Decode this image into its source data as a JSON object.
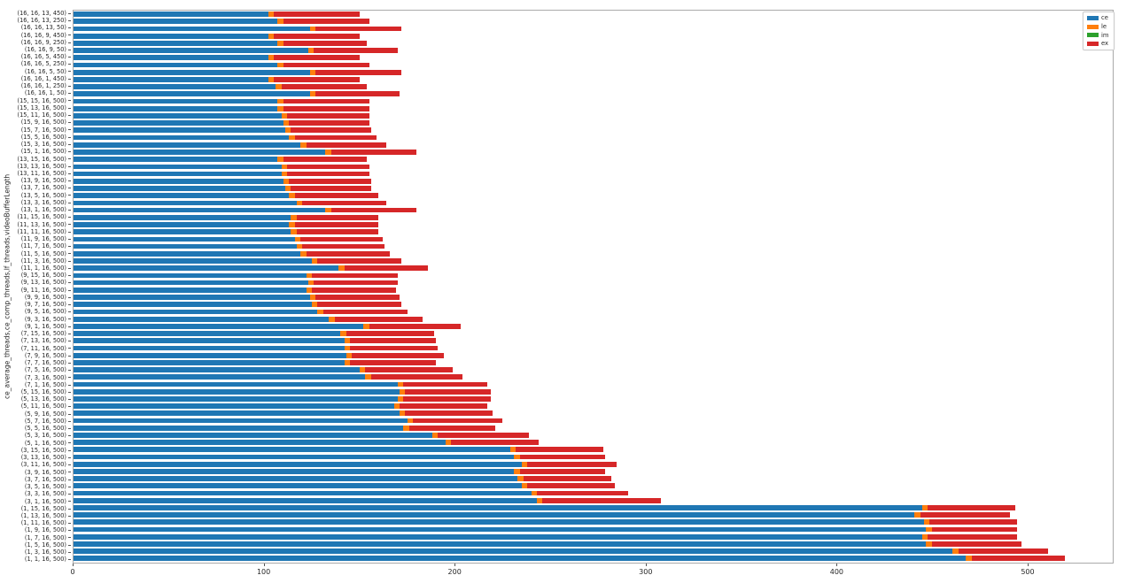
{
  "figure": {
    "background": "#ffffff"
  },
  "legend": {
    "entries": [
      {
        "label": "ce",
        "color": "#1f77b4"
      },
      {
        "label": "le",
        "color": "#ff7f0e"
      },
      {
        "label": "im",
        "color": "#2ca02c"
      },
      {
        "label": "ex",
        "color": "#d62728"
      }
    ]
  },
  "chart_data": {
    "type": "bar",
    "orientation": "horizontal",
    "stacked": true,
    "title": "",
    "xlabel": "",
    "ylabel": "ce_average_threads,ce_comp_threads,lf_threads,videoBufferLength",
    "xlim": [
      0,
      545
    ],
    "xticks": [
      0,
      100,
      200,
      300,
      400,
      500
    ],
    "grid": false,
    "legend_position": "upper right",
    "colors": {
      "ce": "#1f77b4",
      "le": "#ff7f0e",
      "im": "#2ca02c",
      "ex": "#d62728"
    },
    "categories": [
      "(16, 16, 13, 450)",
      "(16, 16, 13, 250)",
      "(16, 16, 13, 50)",
      "(16, 16, 9, 450)",
      "(16, 16, 9, 250)",
      "(16, 16, 9, 50)",
      "(16, 16, 5, 450)",
      "(16, 16, 5, 250)",
      "(16, 16, 5, 50)",
      "(16, 16, 1, 450)",
      "(16, 16, 1, 250)",
      "(16, 16, 1, 50)",
      "(15, 15, 16, 500)",
      "(15, 13, 16, 500)",
      "(15, 11, 16, 500)",
      "(15, 9, 16, 500)",
      "(15, 7, 16, 500)",
      "(15, 5, 16, 500)",
      "(15, 3, 16, 500)",
      "(15, 1, 16, 500)",
      "(13, 15, 16, 500)",
      "(13, 13, 16, 500)",
      "(13, 11, 16, 500)",
      "(13, 9, 16, 500)",
      "(13, 7, 16, 500)",
      "(13, 5, 16, 500)",
      "(13, 3, 16, 500)",
      "(13, 1, 16, 500)",
      "(11, 15, 16, 500)",
      "(11, 13, 16, 500)",
      "(11, 11, 16, 500)",
      "(11, 9, 16, 500)",
      "(11, 7, 16, 500)",
      "(11, 5, 16, 500)",
      "(11, 3, 16, 500)",
      "(11, 1, 16, 500)",
      "(9, 15, 16, 500)",
      "(9, 13, 16, 500)",
      "(9, 11, 16, 500)",
      "(9, 9, 16, 500)",
      "(9, 7, 16, 500)",
      "(9, 5, 16, 500)",
      "(9, 3, 16, 500)",
      "(9, 1, 16, 500)",
      "(7, 15, 16, 500)",
      "(7, 13, 16, 500)",
      "(7, 11, 16, 500)",
      "(7, 9, 16, 500)",
      "(7, 7, 16, 500)",
      "(7, 5, 16, 500)",
      "(7, 3, 16, 500)",
      "(7, 1, 16, 500)",
      "(5, 15, 16, 500)",
      "(5, 13, 16, 500)",
      "(5, 11, 16, 500)",
      "(5, 9, 16, 500)",
      "(5, 7, 16, 500)",
      "(5, 5, 16, 500)",
      "(5, 3, 16, 500)",
      "(5, 1, 16, 500)",
      "(3, 15, 16, 500)",
      "(3, 13, 16, 500)",
      "(3, 11, 16, 500)",
      "(3, 9, 16, 500)",
      "(3, 7, 16, 500)",
      "(3, 5, 16, 500)",
      "(3, 3, 16, 500)",
      "(3, 1, 16, 500)",
      "(1, 15, 16, 500)",
      "(1, 13, 16, 500)",
      "(1, 11, 16, 500)",
      "(1, 9, 16, 500)",
      "(1, 7, 16, 500)",
      "(1, 5, 16, 500)",
      "(1, 3, 16, 500)",
      "(1, 1, 16, 500)"
    ],
    "series": [
      {
        "name": "ce",
        "values": [
          102,
          107,
          124,
          102,
          107,
          123,
          102,
          107,
          124,
          102,
          106,
          124,
          107,
          107,
          109,
          110,
          111,
          113,
          119,
          132,
          107,
          109,
          109,
          110,
          111,
          113,
          117,
          132,
          114,
          113,
          114,
          116,
          117,
          119,
          125,
          139,
          122,
          123,
          122,
          124,
          125,
          128,
          134,
          152,
          140,
          142,
          142,
          143,
          142,
          150,
          153,
          170,
          171,
          170,
          168,
          171,
          175,
          173,
          188,
          195,
          229,
          231,
          235,
          231,
          233,
          235,
          240,
          243,
          445,
          441,
          446,
          447,
          445,
          447,
          461,
          468
        ]
      },
      {
        "name": "le",
        "values": [
          3,
          3,
          3,
          3,
          3,
          3,
          3,
          3,
          3,
          3,
          3,
          3,
          3,
          3,
          3,
          3,
          3,
          3,
          3,
          3,
          3,
          3,
          3,
          3,
          3,
          3,
          3,
          3,
          3,
          3,
          3,
          3,
          3,
          3,
          3,
          3,
          3,
          3,
          3,
          3,
          3,
          3,
          3,
          3,
          3,
          3,
          3,
          3,
          3,
          3,
          3,
          3,
          3,
          3,
          3,
          3,
          3,
          3,
          3,
          3,
          3,
          3,
          3,
          3,
          3,
          3,
          3,
          3,
          3,
          3,
          3,
          3,
          3,
          3,
          3,
          3
        ]
      },
      {
        "name": "im",
        "values": [
          0,
          0,
          0,
          0,
          0,
          0,
          0,
          0,
          0,
          0,
          0,
          0,
          0,
          0,
          0,
          0,
          0,
          0,
          0,
          0,
          0,
          0,
          0,
          0,
          0,
          0,
          0,
          0,
          0,
          0,
          0,
          0,
          0,
          0,
          0,
          0,
          0,
          0,
          0,
          0,
          0,
          0,
          0,
          0,
          0,
          0,
          0,
          0,
          0,
          0,
          0,
          0,
          0,
          0,
          0,
          0,
          0,
          0,
          0,
          0,
          0,
          0,
          0,
          0,
          0,
          0,
          0,
          0,
          0,
          0,
          0,
          0,
          0,
          0,
          0,
          0
        ]
      },
      {
        "name": "ex",
        "values": [
          45,
          45,
          45,
          45,
          44,
          44,
          45,
          45,
          45,
          45,
          45,
          44,
          45,
          45,
          43,
          42,
          42,
          43,
          42,
          45,
          44,
          43,
          43,
          43,
          42,
          44,
          44,
          45,
          43,
          44,
          43,
          43,
          43,
          44,
          44,
          44,
          45,
          44,
          44,
          44,
          44,
          44,
          46,
          48,
          46,
          45,
          46,
          48,
          45,
          46,
          48,
          44,
          45,
          46,
          46,
          46,
          47,
          45,
          48,
          46,
          46,
          45,
          47,
          45,
          46,
          46,
          48,
          62,
          46,
          47,
          46,
          45,
          47,
          47,
          47,
          49
        ]
      }
    ]
  }
}
